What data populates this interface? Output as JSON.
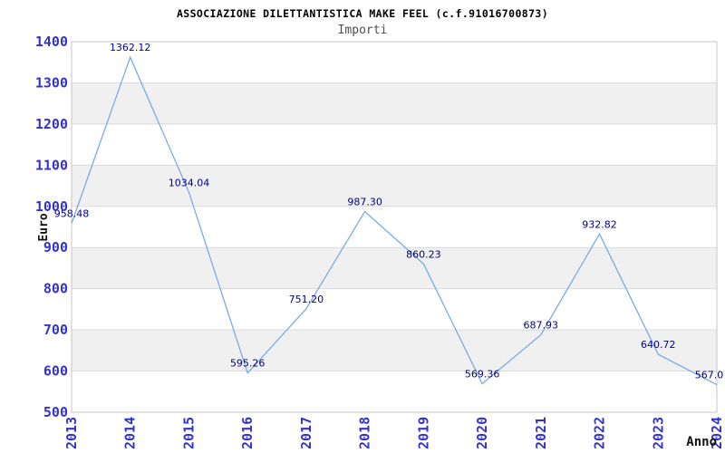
{
  "chart_data": {
    "type": "line",
    "title": "ASSOCIAZIONE DILETTANTISTICA MAKE FEEL (c.f.91016700873)",
    "subtitle": "Importi",
    "xlabel": "Anno",
    "ylabel": "Euro",
    "x": [
      "2013",
      "2014",
      "2015",
      "2016",
      "2017",
      "2018",
      "2019",
      "2020",
      "2021",
      "2022",
      "2023",
      "2024"
    ],
    "series": [
      {
        "name": "Importi",
        "values": [
          958.48,
          1362.12,
          1034.04,
          595.26,
          751.2,
          987.3,
          860.23,
          569.36,
          687.93,
          932.82,
          640.72,
          567.0
        ]
      }
    ],
    "point_labels": [
      "958.48",
      "1362.12",
      "1034.04",
      "595.26",
      "751.20",
      "987.30",
      "860.23",
      "569.36",
      "687.93",
      "932.82",
      "640.72",
      "567.0"
    ],
    "ylim": [
      500,
      1400
    ],
    "ytick_step": 100,
    "yticks": [
      500,
      600,
      700,
      800,
      900,
      1000,
      1100,
      1200,
      1300,
      1400
    ],
    "grid": "horizontal-only",
    "bands": "alternating gray between odd hundreds (600-700, 800-900, 1000-1100, 1200-1300)",
    "legend_position": "none",
    "markers": "none",
    "colors": {
      "line": "#79ACE5",
      "tick_label": "#3333CC",
      "point_label": "#000085",
      "band_fill": "#F0F0F0",
      "gridline": "#DADADA",
      "plot_border": "#C4C4C4",
      "title": "#000000",
      "subtitle": "#4D4D4D",
      "axis_title": "#111111",
      "background": "#FFFFFF"
    }
  }
}
